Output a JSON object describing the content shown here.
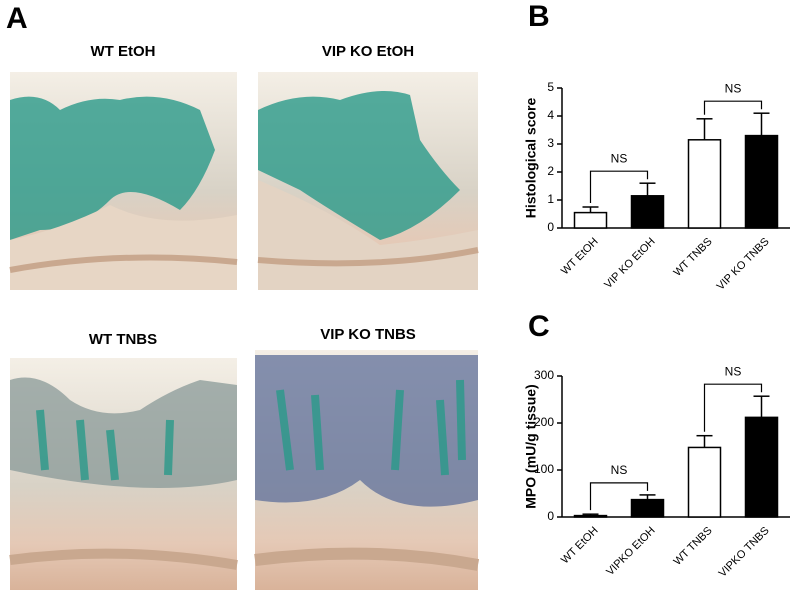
{
  "figure": {
    "panel_labels": [
      "A",
      "B",
      "C"
    ],
    "image_titles": [
      "WT EtOH",
      "VIP KO EtOH",
      "WT TNBS",
      "VIP KO TNBS"
    ]
  },
  "chart_data": [
    {
      "type": "bar",
      "ylabel": "Histological score",
      "categories": [
        "WT EtOH",
        "VIP KO EtOH",
        "WT TNBS",
        "VIP KO TNBS"
      ],
      "values": [
        0.55,
        1.15,
        3.15,
        3.3
      ],
      "errors": [
        0.2,
        0.45,
        0.75,
        0.8
      ],
      "colors": [
        "#ffffff",
        "#000000",
        "#ffffff",
        "#000000"
      ],
      "ylim": [
        0,
        5
      ],
      "yticks": [
        0,
        1,
        2,
        3,
        4,
        5
      ],
      "annotations": [
        "NS",
        "NS"
      ]
    },
    {
      "type": "bar",
      "ylabel": "MPO (mU/g tissue)",
      "categories": [
        "WT EtOH",
        "VIPKO EtOH",
        "WT TNBS",
        "VIPKO TNBS"
      ],
      "values": [
        3,
        37,
        148,
        212
      ],
      "errors": [
        3,
        10,
        25,
        45
      ],
      "colors": [
        "#ffffff",
        "#000000",
        "#ffffff",
        "#000000"
      ],
      "ylim": [
        0,
        300
      ],
      "yticks": [
        0,
        100,
        200,
        300
      ],
      "annotations": [
        "NS",
        "NS"
      ]
    }
  ]
}
